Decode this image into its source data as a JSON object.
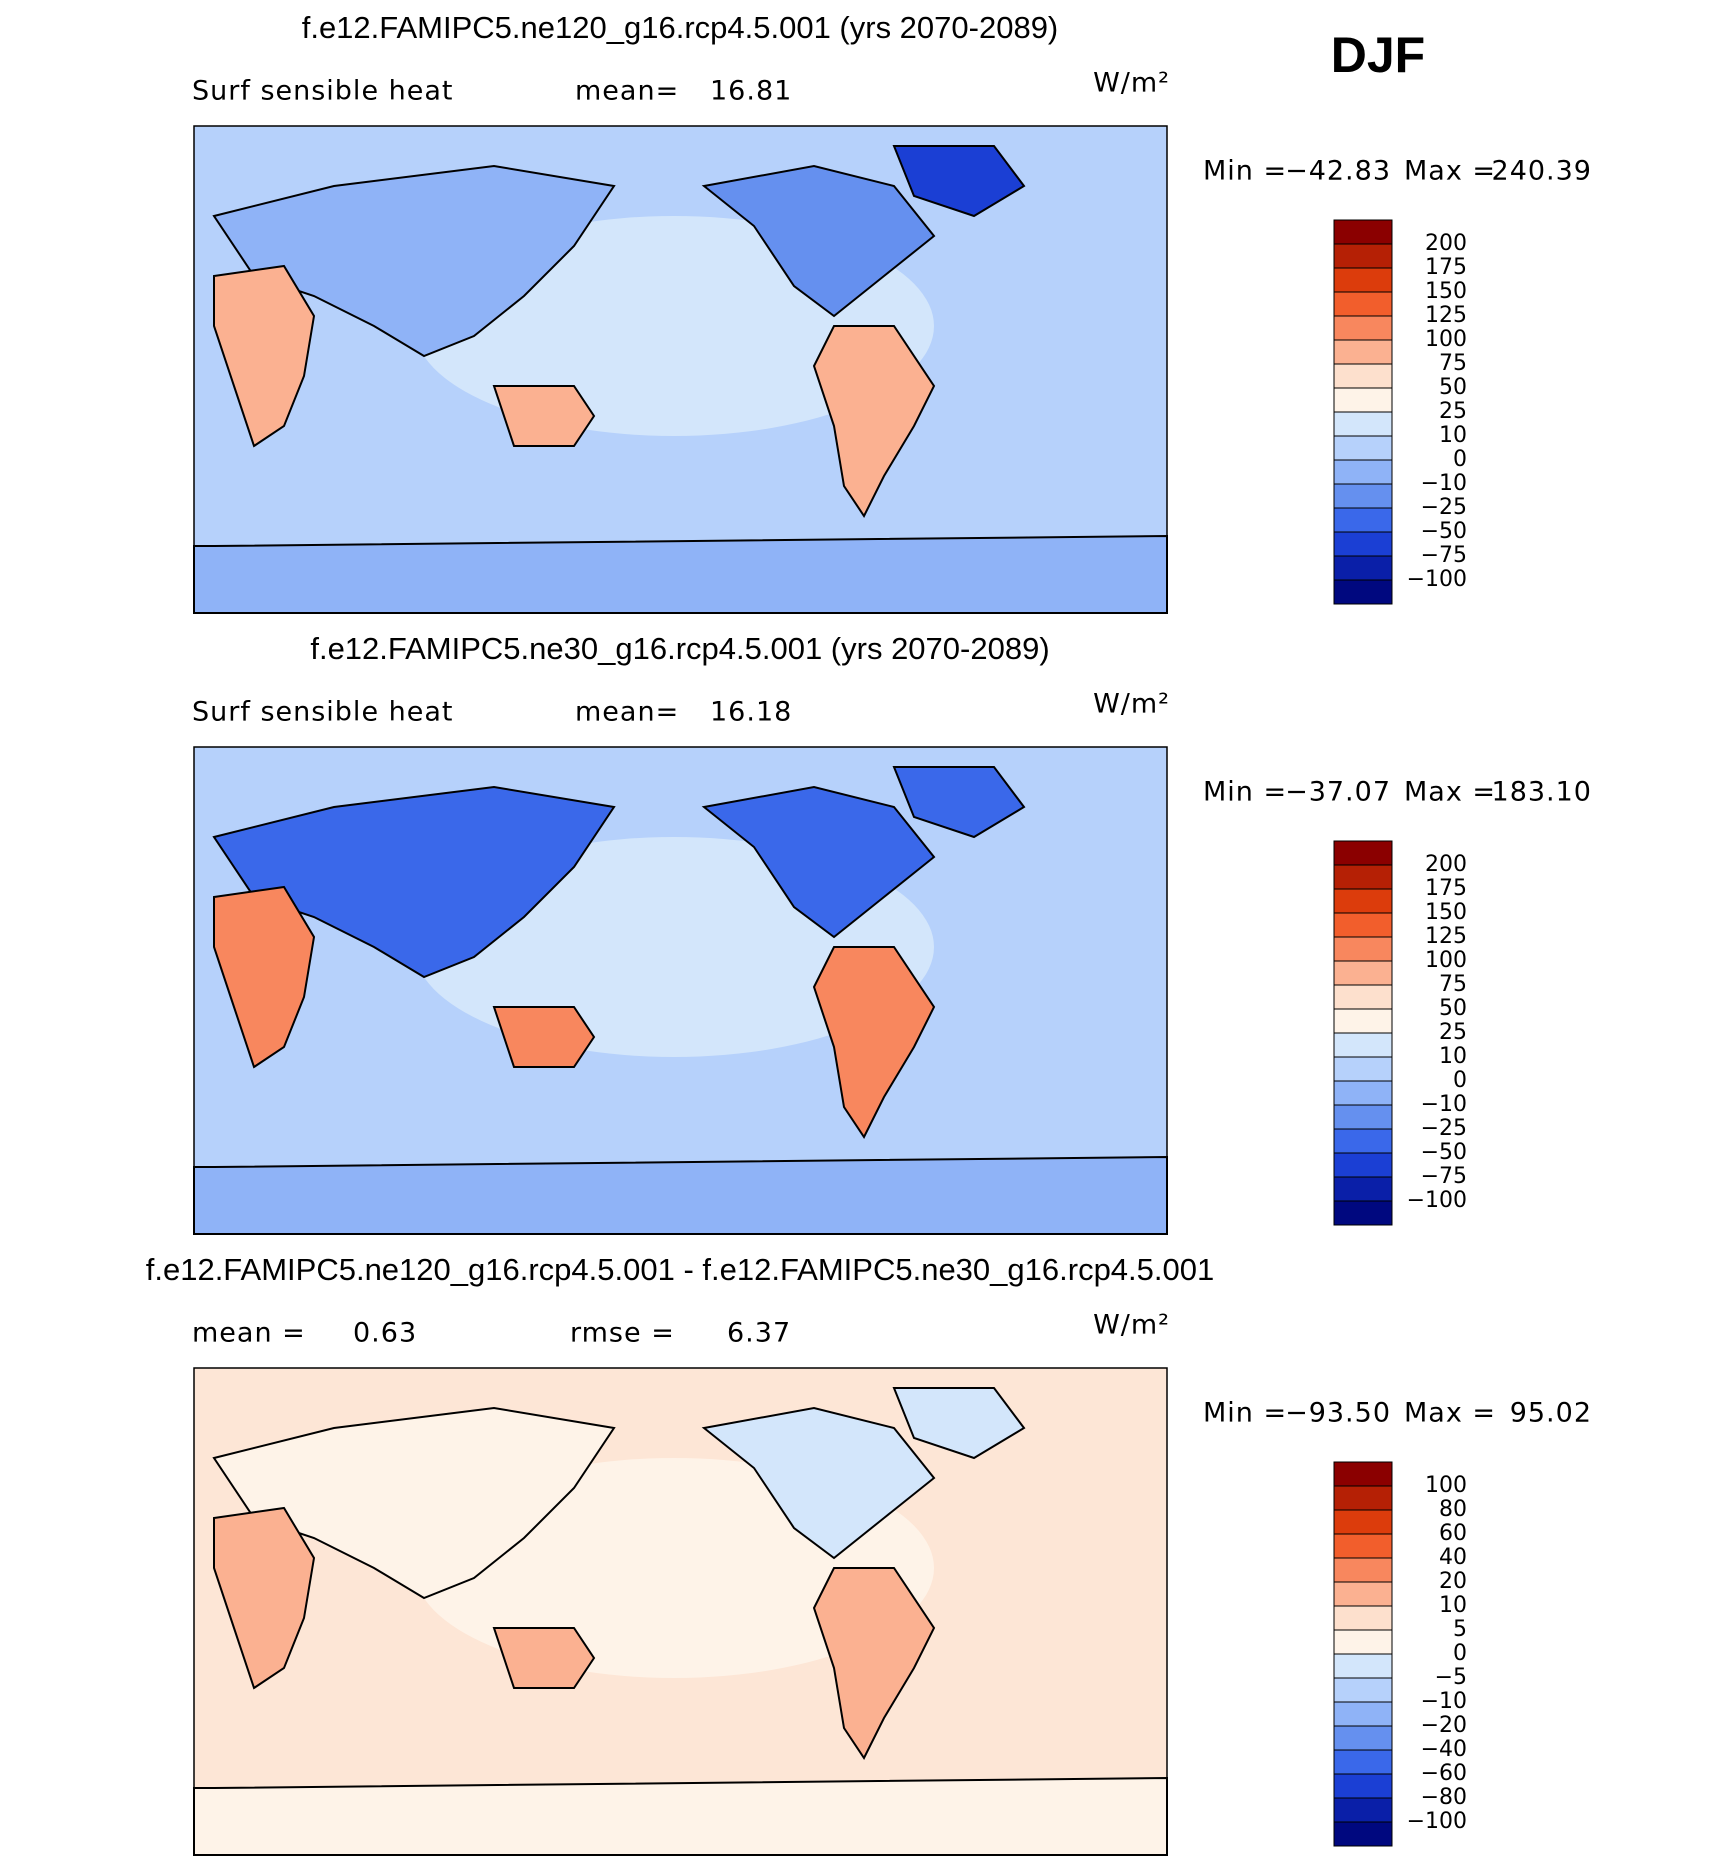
{
  "season": "DJF",
  "units": "W/m²",
  "panels": [
    {
      "title": "f.e12.FAMIPC5.ne120_g16.rcp4.5.001 (yrs 2070-2089)",
      "left_label": "Surf sensible heat",
      "stat_label": "mean=",
      "stat_value": "16.81",
      "min_label": "Min =",
      "min_value": "−42.83",
      "max_label": "Max =",
      "max_value": "240.39",
      "colorbar_labels": [
        "200",
        "175",
        "150",
        "125",
        "100",
        "75",
        "50",
        "25",
        "10",
        "0",
        "−10",
        "−25",
        "−50",
        "−75",
        "−100"
      ],
      "colors": [
        "#8b0000",
        "#b52005",
        "#dc3c0c",
        "#f25e2c",
        "#f8875e",
        "#fbb191",
        "#fde0cd",
        "#fef3e8",
        "#d3e6fb",
        "#b6d1fb",
        "#8fb3f7",
        "#6590ef",
        "#3a68ea",
        "#1b3fd4",
        "#0a1fa8",
        "#00087f"
      ],
      "background": "#b6d1fb"
    },
    {
      "title": "f.e12.FAMIPC5.ne30_g16.rcp4.5.001 (yrs 2070-2089)",
      "left_label": "Surf sensible heat",
      "stat_label": "mean=",
      "stat_value": "16.18",
      "min_label": "Min =",
      "min_value": "−37.07",
      "max_label": "Max =",
      "max_value": "183.10",
      "colorbar_labels": [
        "200",
        "175",
        "150",
        "125",
        "100",
        "75",
        "50",
        "25",
        "10",
        "0",
        "−10",
        "−25",
        "−50",
        "−75",
        "−100"
      ],
      "colors": [
        "#8b0000",
        "#b52005",
        "#dc3c0c",
        "#f25e2c",
        "#f8875e",
        "#fbb191",
        "#fde0cd",
        "#fef3e8",
        "#d3e6fb",
        "#b6d1fb",
        "#8fb3f7",
        "#6590ef",
        "#3a68ea",
        "#1b3fd4",
        "#0a1fa8",
        "#00087f"
      ],
      "background": "#b6d1fb"
    },
    {
      "title": "f.e12.FAMIPC5.ne120_g16.rcp4.5.001 - f.e12.FAMIPC5.ne30_g16.rcp4.5.001",
      "left_label": "mean =",
      "left_value": "0.63",
      "stat_label": "rmse =",
      "stat_value": "6.37",
      "min_label": "Min =",
      "min_value": "−93.50",
      "max_label": "Max =",
      "max_value": "95.02",
      "colorbar_labels": [
        "100",
        "80",
        "60",
        "40",
        "20",
        "10",
        "5",
        "0",
        "−5",
        "−10",
        "−20",
        "−40",
        "−60",
        "−80",
        "−100"
      ],
      "colors": [
        "#8b0000",
        "#b52005",
        "#dc3c0c",
        "#f25e2c",
        "#f8875e",
        "#fbb191",
        "#fde0cd",
        "#fef3e8",
        "#d3e6fb",
        "#b6d1fb",
        "#8fb3f7",
        "#6590ef",
        "#3a68ea",
        "#1b3fd4",
        "#0a1fa8",
        "#00087f"
      ],
      "background": "#fde6d6"
    }
  ]
}
